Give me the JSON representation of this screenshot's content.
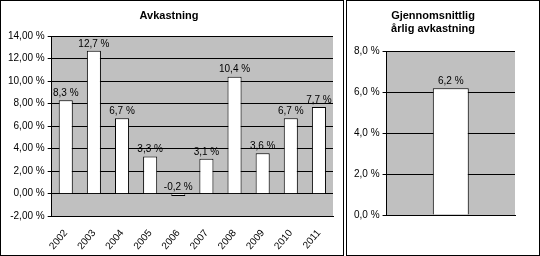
{
  "chart_data": [
    {
      "type": "bar",
      "title": "Avkastning",
      "categories": [
        "2002",
        "2003",
        "2004",
        "2005",
        "2006",
        "2007",
        "2008",
        "2009",
        "2010",
        "2011"
      ],
      "values": [
        8.3,
        12.7,
        6.7,
        3.3,
        -0.2,
        3.1,
        10.4,
        3.6,
        6.7,
        7.7
      ],
      "value_labels": [
        "8,3 %",
        "12,7 %",
        "6,7 %",
        "3,3 %",
        "-0,2 %",
        "3,1 %",
        "10,4 %",
        "3,6 %",
        "6,7 %",
        "7,7 %"
      ],
      "color": "#ffffff",
      "ylim": [
        -2,
        14
      ],
      "yticks": [
        {
          "value": -2,
          "label": "-2,00 %"
        },
        {
          "value": 0,
          "label": "0,00 %"
        },
        {
          "value": 2,
          "label": "2,00 %"
        },
        {
          "value": 4,
          "label": "4,00 %"
        },
        {
          "value": 6,
          "label": "6,00 %"
        },
        {
          "value": 8,
          "label": "8,00 %"
        },
        {
          "value": 10,
          "label": "10,00 %"
        },
        {
          "value": 12,
          "label": "12,00 %"
        },
        {
          "value": 14,
          "label": "14,00 %"
        }
      ],
      "grid": true,
      "data_labels": true
    },
    {
      "type": "bar",
      "title": "Gjennomsnittlig årlig avkastning",
      "categories": [
        null
      ],
      "values": [
        6.2
      ],
      "value_labels": [
        "6,2 %"
      ],
      "color": "#ffffff",
      "ylim": [
        0,
        8
      ],
      "yticks": [
        {
          "value": 0,
          "label": "0,0 %"
        },
        {
          "value": 2,
          "label": "2,0 %"
        },
        {
          "value": 4,
          "label": "4,0 %"
        },
        {
          "value": 6,
          "label": "6,0 %"
        },
        {
          "value": 8,
          "label": "8,0 %"
        }
      ],
      "grid": true,
      "data_labels": true
    }
  ]
}
